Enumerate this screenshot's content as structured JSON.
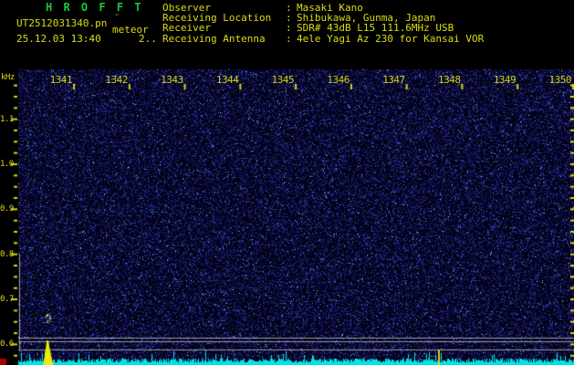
{
  "header": {
    "title": "H R O F F T",
    "filename": "UT2512031340.pn",
    "filename_artifact": "¨",
    "filename_overlay": "meteor",
    "datetime": "25.12.03 13:40",
    "echo_count": "2..",
    "info_rows": [
      {
        "label": "Observer",
        "sep": ":",
        "value": "Masaki Kano"
      },
      {
        "label": "Receiving Location",
        "sep": ":",
        "value": "Shibukawa, Gunma, Japan"
      },
      {
        "label": "Receiver",
        "sep": ":",
        "value": "SDR# 43dB L15 111.6MHz USB"
      },
      {
        "label": "Receiving Antenna",
        "sep": ":",
        "value": "4ele Yagi Az 230 for Kansai VOR"
      }
    ]
  },
  "axes": {
    "freq_unit_label": "kHz",
    "freq_labels": [
      "1.1",
      "1.0",
      "0.9",
      "0.8",
      "0.7",
      "0.6"
    ],
    "time_labels": [
      "1341",
      "1342",
      "1343",
      "1344",
      "1345",
      "1346",
      "1347",
      "1348",
      "1349",
      "1350"
    ]
  },
  "chart_data": {
    "type": "heatmap",
    "title": "HROFFT 10-minute radio meteor spectrogram",
    "x_start_time": "13:40",
    "x_end_time": "13:50",
    "x_tick_labels": [
      "1341",
      "1342",
      "1343",
      "1344",
      "1345",
      "1346",
      "1347",
      "1348",
      "1349",
      "1350"
    ],
    "y_unit": "kHz",
    "y_tick_values": [
      1.1,
      1.0,
      0.9,
      0.8,
      0.7,
      0.6
    ],
    "y_range_khz": [
      0.56,
      1.19
    ],
    "background": "dark blue speckle noise, no sustained carrier",
    "level_strip": "cyan noise-floor trace along bottom edge",
    "events": [
      {
        "name": "meteor-echo",
        "time": "13:40:32",
        "freq_khz": 0.66,
        "appearance": "multicolor pixel burst"
      },
      {
        "name": "signal-level-spike",
        "time": "13:40:32",
        "appearance": "yellow spike on level strip"
      },
      {
        "name": "time-marker-line",
        "time": "13:47:34",
        "appearance": "yellow vertical line on level strip"
      }
    ]
  },
  "spectrogram": {
    "seed": 1337,
    "noise_density": 0.55
  },
  "colors": {
    "background": "#000000",
    "text_yellow": "#dcdc14",
    "title_green": "#17c93c",
    "noise_base": "#000010",
    "noise_palette": [
      "#0c0c38",
      "#14145a",
      "#1d1d7e",
      "#2929a4",
      "#3c3cc8",
      "#5555e2",
      "#2d9fd8",
      "#86ccf4"
    ],
    "noise_weights": [
      0.34,
      0.25,
      0.17,
      0.12,
      0.06,
      0.03,
      0.02,
      0.01
    ],
    "cyan_strip": "#00e4e4",
    "grey_line": "#9b9ba2",
    "spike_yellow": "#ecec08",
    "marker_red": "#a80000",
    "tick_yellow": "#d8d80a",
    "echo_palette": [
      "#ff3030",
      "#ffff30",
      "#30ff30",
      "#ff30ff",
      "#30ffff",
      "#ff9030",
      "#ffffff",
      "#4060ff"
    ]
  }
}
